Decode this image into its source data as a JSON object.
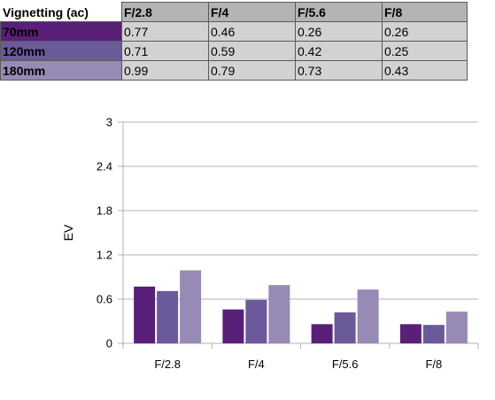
{
  "colors": {
    "70mm": "#5a1f78",
    "120mm": "#6b5a9a",
    "180mm": "#978ab5"
  },
  "table": {
    "corner_label": "Vignetting (ac)",
    "columns": [
      "F/2.8",
      "F/4",
      "F/5.6",
      "F/8"
    ],
    "rows": [
      {
        "label": "70mm",
        "values": [
          "0.77",
          "0.46",
          "0.26",
          "0.26"
        ]
      },
      {
        "label": "120mm",
        "values": [
          "0.71",
          "0.59",
          "0.42",
          "0.25"
        ]
      },
      {
        "label": "180mm",
        "values": [
          "0.99",
          "0.79",
          "0.73",
          "0.43"
        ]
      }
    ]
  },
  "chart_data": {
    "type": "bar",
    "categories": [
      "F/2.8",
      "F/4",
      "F/5.6",
      "F/8"
    ],
    "series": [
      {
        "values": [
          0.77,
          0.46,
          0.26,
          0.26
        ],
        "color": "#5a1f78"
      },
      {
        "values": [
          0.71,
          0.59,
          0.42,
          0.25
        ],
        "color": "#6b5a9a"
      },
      {
        "values": [
          0.99,
          0.79,
          0.73,
          0.43
        ],
        "color": "#978ab5"
      }
    ],
    "ylabel": "EV",
    "ylim": [
      0,
      3
    ],
    "yticks": [
      "0",
      "0.6",
      "1.2",
      "1.8",
      "2.4",
      "3"
    ],
    "ytick_values": [
      0,
      0.6,
      1.2,
      1.8,
      2.4,
      3
    ],
    "grid": true
  }
}
